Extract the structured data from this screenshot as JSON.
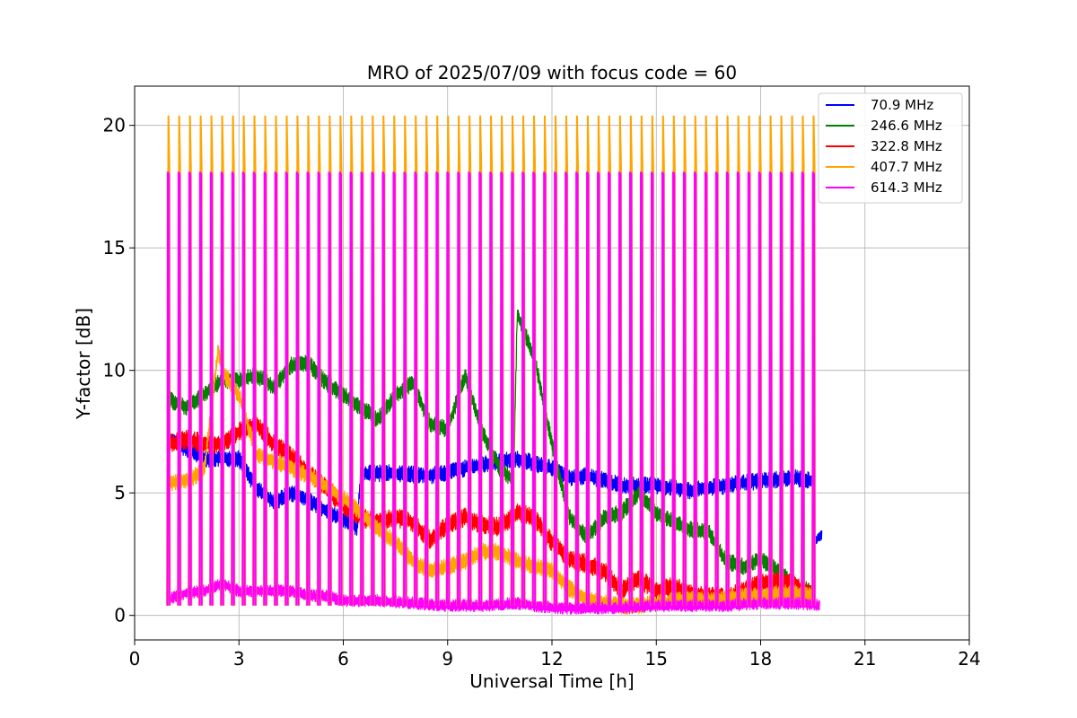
{
  "chart_data": {
    "type": "line",
    "title": "MRO of 2025/07/09 with focus code = 60",
    "xlabel": "Universal Time [h]",
    "ylabel": "Y-factor [dB]",
    "xlim": [
      0,
      24
    ],
    "ylim": [
      -1,
      21.6
    ],
    "xticks": [
      0,
      3,
      6,
      9,
      12,
      15,
      18,
      21,
      24
    ],
    "yticks": [
      0,
      5,
      10,
      15,
      20
    ],
    "grid": true,
    "legend_position": "top-right",
    "series": [
      {
        "name": " 70.9 MHz",
        "color": "#0000ff",
        "x": [
          1.0,
          2.0,
          3.0,
          3.5,
          4.0,
          4.5,
          5.0,
          5.5,
          6.0,
          6.4,
          6.5,
          7.5,
          8.5,
          9.5,
          10.5,
          11.0,
          11.5,
          12.0,
          12.5,
          13.0,
          14.0,
          15.0,
          16.0,
          17.0,
          18.0,
          19.0,
          19.5
        ],
        "values": [
          7.2,
          6.4,
          6.4,
          5.2,
          4.6,
          5.0,
          4.7,
          4.3,
          3.9,
          3.6,
          5.8,
          5.8,
          5.7,
          6.0,
          6.3,
          6.4,
          6.2,
          6.0,
          5.6,
          5.7,
          5.3,
          5.3,
          5.1,
          5.3,
          5.5,
          5.6,
          5.5
        ]
      },
      {
        "name": "246.6 MHz",
        "color": "#008000",
        "x": [
          1.0,
          1.5,
          2.0,
          2.5,
          3.0,
          3.5,
          4.0,
          4.5,
          5.0,
          5.5,
          6.0,
          6.5,
          7.0,
          7.5,
          8.0,
          8.5,
          9.0,
          9.5,
          10.0,
          10.5,
          10.9,
          11.0,
          11.5,
          12.0,
          12.5,
          13.0,
          13.5,
          14.0,
          14.5,
          15.0,
          15.5,
          16.0,
          16.5,
          17.0,
          17.5,
          18.0,
          18.5,
          19.0,
          19.5
        ],
        "values": [
          8.8,
          8.5,
          9.0,
          9.6,
          9.6,
          9.8,
          9.3,
          10.2,
          10.3,
          9.5,
          9.0,
          8.5,
          8.0,
          9.0,
          9.5,
          7.8,
          7.6,
          9.8,
          7.5,
          6.0,
          5.5,
          12.3,
          10.5,
          7.0,
          4.0,
          3.2,
          4.0,
          4.2,
          5.0,
          4.2,
          3.8,
          3.5,
          3.4,
          2.2,
          2.0,
          2.3,
          1.8,
          1.2,
          1.0
        ]
      },
      {
        "name": "322.8 MHz",
        "color": "#ff0000",
        "x": [
          1.0,
          1.5,
          2.0,
          2.5,
          3.0,
          3.5,
          4.0,
          4.5,
          5.0,
          5.5,
          6.0,
          6.5,
          7.0,
          7.5,
          8.0,
          8.5,
          9.0,
          9.5,
          10.0,
          10.5,
          11.0,
          11.5,
          12.0,
          12.5,
          13.0,
          13.5,
          14.0,
          14.5,
          15.0,
          15.5,
          16.0,
          16.5,
          17.0,
          17.5,
          18.0,
          18.5,
          19.0,
          19.5
        ],
        "values": [
          7.0,
          7.2,
          7.0,
          7.0,
          7.5,
          7.8,
          7.0,
          6.5,
          5.8,
          5.2,
          4.5,
          4.0,
          3.8,
          4.0,
          3.8,
          3.1,
          3.7,
          4.0,
          3.7,
          3.6,
          4.2,
          4.0,
          3.0,
          2.3,
          2.1,
          1.8,
          1.0,
          1.5,
          1.0,
          1.2,
          0.9,
          0.8,
          0.7,
          1.0,
          1.3,
          1.4,
          1.2,
          0.8
        ]
      },
      {
        "name": "407.7 MHz",
        "color": "#ffa500",
        "x": [
          1.0,
          1.5,
          2.0,
          2.4,
          2.6,
          3.0,
          3.5,
          4.0,
          4.5,
          5.0,
          5.5,
          6.0,
          6.5,
          7.0,
          7.5,
          8.0,
          8.5,
          9.0,
          9.5,
          10.0,
          10.5,
          11.0,
          11.5,
          12.0,
          12.5,
          13.0,
          13.5,
          14.0,
          14.5,
          15.0,
          15.5,
          16.0,
          16.5,
          17.0,
          17.5,
          18.0,
          18.5,
          19.0,
          19.5
        ],
        "values": [
          5.4,
          5.5,
          5.9,
          10.8,
          9.8,
          9.0,
          6.6,
          6.3,
          6.0,
          5.7,
          5.3,
          4.8,
          4.2,
          3.5,
          3.0,
          2.2,
          1.8,
          2.0,
          2.2,
          2.6,
          2.6,
          2.2,
          2.0,
          1.8,
          1.1,
          0.7,
          0.5,
          0.4,
          0.4,
          0.5,
          0.6,
          0.7,
          0.6,
          0.7,
          0.8,
          0.8,
          0.9,
          0.9,
          0.8
        ]
      },
      {
        "name": "614.3 MHz",
        "color": "#ff00ff",
        "x": [
          1.0,
          1.5,
          2.0,
          2.5,
          3.0,
          3.5,
          4.0,
          4.5,
          5.0,
          5.5,
          6.0,
          7.0,
          8.0,
          9.0,
          10.0,
          11.0,
          12.0,
          13.0,
          14.0,
          15.0,
          16.0,
          17.0,
          18.0,
          19.0,
          19.7
        ],
        "values": [
          0.7,
          0.9,
          1.0,
          1.3,
          1.0,
          1.0,
          1.0,
          1.0,
          0.8,
          0.8,
          0.6,
          0.6,
          0.5,
          0.4,
          0.4,
          0.5,
          0.3,
          0.3,
          0.3,
          0.4,
          0.4,
          0.4,
          0.5,
          0.5,
          0.4
        ]
      }
    ],
    "calibration_spikes": {
      "x_start": 1.0,
      "x_end": 19.55,
      "count": 61,
      "peak_magenta": 18.1,
      "peak_orange": 20.4,
      "peak_base": 18.3,
      "trough": 0.4
    },
    "tail_segment": {
      "name": " 70.9 MHz",
      "x": [
        19.55,
        19.75
      ],
      "values": [
        3.0,
        3.3
      ]
    }
  }
}
